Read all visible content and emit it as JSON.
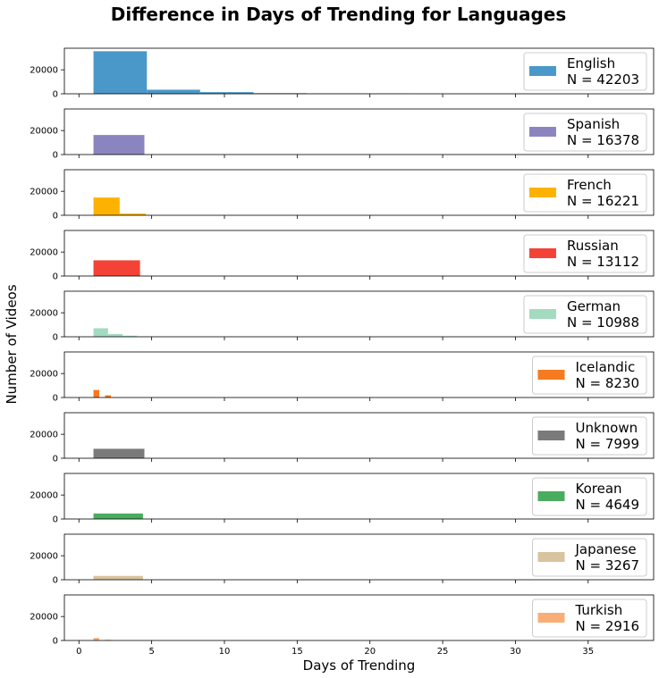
{
  "figure": {
    "title": "Difference in Days of Trending for Languages",
    "xlabel": "Days of Trending",
    "ylabel": "Number of Videos"
  },
  "chart_data": {
    "type": "bar",
    "title": "Difference in Days of Trending for Languages",
    "xlabel": "Days of Trending",
    "ylabel": "Number of Videos",
    "xlim": [
      -1,
      39.5
    ],
    "ylim": [
      0,
      38000
    ],
    "xticks": [
      0,
      5,
      10,
      15,
      20,
      25,
      30,
      35
    ],
    "yticks": [
      0,
      20000
    ],
    "legend_position": "right",
    "grid": false,
    "series": [
      {
        "name": "English",
        "n_label": "N = 42203",
        "color": "#4a98c9",
        "bins": [
          [
            1,
            4.67,
            35500
          ],
          [
            4.67,
            8.33,
            3400
          ],
          [
            8.33,
            12,
            1400
          ],
          [
            12,
            15.67,
            500
          ],
          [
            15.67,
            19.33,
            250
          ],
          [
            19.33,
            23,
            150
          ],
          [
            23,
            26.67,
            100
          ],
          [
            26.67,
            30.33,
            80
          ],
          [
            30.33,
            34,
            50
          ]
        ]
      },
      {
        "name": "Spanish",
        "n_label": "N = 16378",
        "color": "#8b85bf",
        "bins": [
          [
            1,
            4.5,
            16300
          ]
        ]
      },
      {
        "name": "French",
        "n_label": "N = 16221",
        "color": "#fdb202",
        "bins": [
          [
            1,
            2.8,
            14800
          ],
          [
            2.8,
            4.6,
            1400
          ]
        ]
      },
      {
        "name": "Russian",
        "n_label": "N = 13112",
        "color": "#f44336",
        "bins": [
          [
            1,
            4.2,
            13100
          ]
        ]
      },
      {
        "name": "German",
        "n_label": "N = 10988",
        "color": "#a3dbc0",
        "bins": [
          [
            1,
            2,
            7100
          ],
          [
            2,
            3,
            2300
          ],
          [
            3,
            4,
            900
          ],
          [
            4,
            5,
            300
          ]
        ]
      },
      {
        "name": "Icelandic",
        "n_label": "N = 8230",
        "color": "#f57a20",
        "bins": [
          [
            1,
            1.4,
            6300
          ],
          [
            1.8,
            2.2,
            1800
          ]
        ]
      },
      {
        "name": "Unknown",
        "n_label": "N = 7999",
        "color": "#7a7a7a",
        "bins": [
          [
            1,
            4.5,
            7900
          ]
        ]
      },
      {
        "name": "Korean",
        "n_label": "N = 4649",
        "color": "#4aac5e",
        "bins": [
          [
            1,
            4.4,
            4600
          ]
        ]
      },
      {
        "name": "Japanese",
        "n_label": "N = 3267",
        "color": "#d9c39e",
        "bins": [
          [
            1,
            4.4,
            3200
          ]
        ]
      },
      {
        "name": "Turkish",
        "n_label": "N = 2916",
        "color": "#f9ae77",
        "bins": [
          [
            1,
            1.4,
            2100
          ],
          [
            1.8,
            2.2,
            600
          ]
        ]
      }
    ]
  }
}
